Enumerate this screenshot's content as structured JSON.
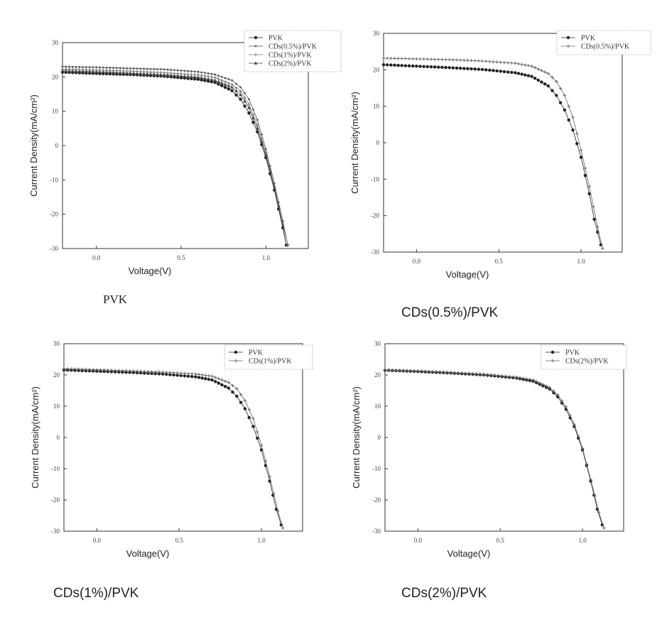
{
  "chart_data": [
    {
      "type": "line",
      "caption": "PVK",
      "xlabel": "Voltage(V)",
      "ylabel": "Current Density(mA/cm²)",
      "xlim": [
        -0.2,
        1.25
      ],
      "ylim": [
        -30,
        30
      ],
      "xticks": [
        "0.0",
        "0.5",
        "1.0"
      ],
      "yticks": [
        "-30",
        "-20",
        "-10",
        "0",
        "10",
        "20",
        "30"
      ],
      "legend_position": "top-right",
      "series": [
        {
          "name": "PVK",
          "color": "#222222",
          "marker": "circle",
          "points": [
            [
              -0.2,
              21.4
            ],
            [
              0.0,
              21.0
            ],
            [
              0.2,
              20.7
            ],
            [
              0.4,
              20.2
            ],
            [
              0.6,
              19.3
            ],
            [
              0.7,
              18.4
            ],
            [
              0.8,
              16.0
            ],
            [
              0.85,
              13.5
            ],
            [
              0.9,
              9.5
            ],
            [
              0.95,
              4.0
            ],
            [
              1.0,
              -3.5
            ],
            [
              1.05,
              -13
            ],
            [
              1.1,
              -24
            ],
            [
              1.12,
              -29
            ]
          ]
        },
        {
          "name": "CDs(0.5%)/PVK",
          "color": "#555555",
          "marker": "dot",
          "points": [
            [
              -0.2,
              23.0
            ],
            [
              0.0,
              22.8
            ],
            [
              0.2,
              22.5
            ],
            [
              0.4,
              22.2
            ],
            [
              0.6,
              21.5
            ],
            [
              0.7,
              20.7
            ],
            [
              0.8,
              19.0
            ],
            [
              0.85,
              17.0
            ],
            [
              0.9,
              13.5
            ],
            [
              0.95,
              7.5
            ],
            [
              1.0,
              -1.0
            ],
            [
              1.05,
              -11
            ],
            [
              1.1,
              -22
            ],
            [
              1.13,
              -29
            ]
          ]
        },
        {
          "name": "CDs(1%)/PVK",
          "color": "#777777",
          "marker": "plus",
          "points": [
            [
              -0.2,
              22.3
            ],
            [
              0.0,
              22.0
            ],
            [
              0.2,
              21.7
            ],
            [
              0.4,
              21.2
            ],
            [
              0.6,
              20.6
            ],
            [
              0.7,
              19.8
            ],
            [
              0.8,
              17.8
            ],
            [
              0.85,
              15.8
            ],
            [
              0.9,
              12.0
            ],
            [
              0.95,
              6.0
            ],
            [
              1.0,
              -2.0
            ],
            [
              1.05,
              -12
            ],
            [
              1.1,
              -23
            ],
            [
              1.13,
              -29
            ]
          ]
        },
        {
          "name": "CDs(2%)/PVK",
          "color": "#444444",
          "marker": "triangle",
          "points": [
            [
              -0.2,
              21.8
            ],
            [
              0.0,
              21.5
            ],
            [
              0.2,
              21.1
            ],
            [
              0.4,
              20.6
            ],
            [
              0.6,
              19.9
            ],
            [
              0.7,
              19.0
            ],
            [
              0.8,
              17.0
            ],
            [
              0.85,
              14.8
            ],
            [
              0.9,
              11.0
            ],
            [
              0.95,
              5.0
            ],
            [
              1.0,
              -2.8
            ],
            [
              1.05,
              -12.5
            ],
            [
              1.1,
              -23.5
            ],
            [
              1.12,
              -29
            ]
          ]
        }
      ]
    },
    {
      "type": "line",
      "caption": "CDs(0.5%)/PVK",
      "xlabel": "Voltage(V)",
      "ylabel": "Current Density(mA/cm²)",
      "xlim": [
        -0.2,
        1.25
      ],
      "ylim": [
        -30,
        30
      ],
      "xticks": [
        "0.0",
        "0.5",
        "1.0"
      ],
      "yticks": [
        "-30",
        "-20",
        "-10",
        "0",
        "10",
        "20",
        "30"
      ],
      "legend_position": "top-right",
      "series": [
        {
          "name": "PVK",
          "color": "#222222",
          "marker": "circle",
          "points": [
            [
              -0.2,
              21.4
            ],
            [
              0.0,
              21.0
            ],
            [
              0.2,
              20.6
            ],
            [
              0.4,
              20.1
            ],
            [
              0.6,
              19.2
            ],
            [
              0.7,
              18.2
            ],
            [
              0.8,
              15.6
            ],
            [
              0.85,
              13.0
            ],
            [
              0.9,
              9.0
            ],
            [
              0.95,
              3.5
            ],
            [
              1.0,
              -4.0
            ],
            [
              1.05,
              -14
            ],
            [
              1.08,
              -21
            ],
            [
              1.12,
              -28
            ]
          ]
        },
        {
          "name": "CDs(0.5%)/PVK",
          "color": "#666666",
          "marker": "plus",
          "points": [
            [
              -0.2,
              23.2
            ],
            [
              0.0,
              23.0
            ],
            [
              0.2,
              22.8
            ],
            [
              0.4,
              22.4
            ],
            [
              0.6,
              21.8
            ],
            [
              0.7,
              21.0
            ],
            [
              0.8,
              19.0
            ],
            [
              0.85,
              16.8
            ],
            [
              0.9,
              13.0
            ],
            [
              0.95,
              7.0
            ],
            [
              1.0,
              -2.0
            ],
            [
              1.05,
              -12
            ],
            [
              1.1,
              -23
            ],
            [
              1.13,
              -29
            ]
          ]
        }
      ]
    },
    {
      "type": "line",
      "caption": "CDs(1%)/PVK",
      "xlabel": "Voltage(V)",
      "ylabel": "Current Density(mA/cm²)",
      "xlim": [
        -0.2,
        1.25
      ],
      "ylim": [
        -30,
        30
      ],
      "xticks": [
        "0.0",
        "0.5",
        "1.0"
      ],
      "yticks": [
        "-30",
        "-20",
        "-10",
        "0",
        "10",
        "20",
        "30"
      ],
      "legend_position": "top-right",
      "series": [
        {
          "name": "PVK",
          "color": "#222222",
          "marker": "circle",
          "points": [
            [
              -0.2,
              21.6
            ],
            [
              0.0,
              21.2
            ],
            [
              0.2,
              20.8
            ],
            [
              0.4,
              20.3
            ],
            [
              0.6,
              19.4
            ],
            [
              0.7,
              18.4
            ],
            [
              0.8,
              15.8
            ],
            [
              0.85,
              13.2
            ],
            [
              0.9,
              9.2
            ],
            [
              0.95,
              3.5
            ],
            [
              1.0,
              -4.0
            ],
            [
              1.05,
              -14
            ],
            [
              1.09,
              -23
            ],
            [
              1.12,
              -28
            ]
          ]
        },
        {
          "name": "CDs(1%)/PVK",
          "color": "#666666",
          "marker": "plus",
          "points": [
            [
              -0.2,
              22.0
            ],
            [
              0.0,
              21.7
            ],
            [
              0.2,
              21.3
            ],
            [
              0.4,
              20.9
            ],
            [
              0.6,
              20.3
            ],
            [
              0.7,
              19.6
            ],
            [
              0.8,
              17.6
            ],
            [
              0.85,
              15.6
            ],
            [
              0.9,
              11.8
            ],
            [
              0.95,
              6.0
            ],
            [
              1.0,
              -2.5
            ],
            [
              1.05,
              -12.5
            ],
            [
              1.1,
              -23.5
            ],
            [
              1.13,
              -29
            ]
          ]
        }
      ]
    },
    {
      "type": "line",
      "caption": "CDs(2%)/PVK",
      "xlabel": "Voltage(V)",
      "ylabel": "Current Density(mA/cm²)",
      "xlim": [
        -0.2,
        1.25
      ],
      "ylim": [
        -30,
        30
      ],
      "xticks": [
        "0.0",
        "0.5",
        "1.0"
      ],
      "yticks": [
        "-30",
        "-20",
        "-10",
        "0",
        "10",
        "20",
        "30"
      ],
      "legend_position": "top-right",
      "series": [
        {
          "name": "PVK",
          "color": "#222222",
          "marker": "circle",
          "points": [
            [
              -0.2,
              21.5
            ],
            [
              0.0,
              21.1
            ],
            [
              0.2,
              20.6
            ],
            [
              0.4,
              20.0
            ],
            [
              0.6,
              19.0
            ],
            [
              0.7,
              18.0
            ],
            [
              0.8,
              15.5
            ],
            [
              0.85,
              13.0
            ],
            [
              0.9,
              9.0
            ],
            [
              0.95,
              3.5
            ],
            [
              1.0,
              -4.0
            ],
            [
              1.05,
              -14
            ],
            [
              1.09,
              -23
            ],
            [
              1.12,
              -28
            ]
          ]
        },
        {
          "name": "CDs(2%)/PVK",
          "color": "#666666",
          "marker": "plus",
          "points": [
            [
              -0.2,
              21.6
            ],
            [
              0.0,
              21.3
            ],
            [
              0.2,
              20.8
            ],
            [
              0.4,
              20.2
            ],
            [
              0.6,
              19.3
            ],
            [
              0.7,
              18.4
            ],
            [
              0.8,
              16.0
            ],
            [
              0.85,
              13.6
            ],
            [
              0.9,
              9.8
            ],
            [
              0.95,
              4.2
            ],
            [
              1.0,
              -3.5
            ],
            [
              1.05,
              -13.5
            ],
            [
              1.1,
              -24
            ],
            [
              1.13,
              -29
            ]
          ]
        }
      ]
    }
  ]
}
